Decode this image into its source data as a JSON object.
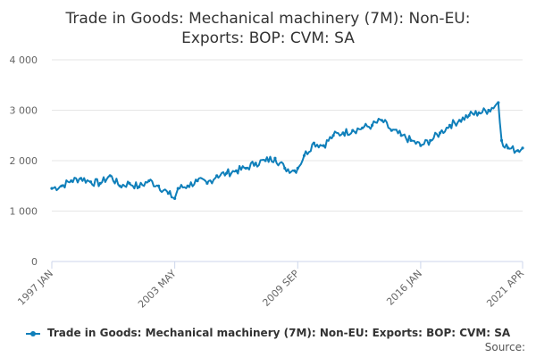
{
  "title": "Trade in Goods: Mechanical machinery (7M): Non-EU:\nExports: BOP: CVM: SA",
  "source_label": "Source:",
  "colors": {
    "series": "#0f7fba",
    "grid": "#e6e6e6",
    "axis": "#ccd6eb"
  },
  "chart_data": {
    "type": "line",
    "title": "Trade in Goods: Mechanical machinery (7M): Non-EU: Exports: BOP: CVM: SA",
    "xlabel": "",
    "ylabel": "",
    "ylim": [
      0,
      4000
    ],
    "y_ticks": [
      "0",
      "1 000",
      "2 000",
      "3 000",
      "4 000"
    ],
    "x_ticks": [
      "1997 JAN",
      "2003 MAY",
      "2009 SEP",
      "2016 JAN",
      "2021 APR"
    ],
    "grid": true,
    "legend_position": "bottom",
    "series": [
      {
        "name": "Trade in Goods: Mechanical machinery (7M): Non-EU: Exports: BOP: CVM: SA",
        "x": [
          "1997-01",
          "1997-07",
          "1998-01",
          "1998-07",
          "1999-01",
          "1999-07",
          "2000-01",
          "2000-07",
          "2001-01",
          "2001-07",
          "2002-01",
          "2002-07",
          "2003-01",
          "2003-05",
          "2003-07",
          "2004-01",
          "2004-07",
          "2005-01",
          "2005-07",
          "2006-01",
          "2006-07",
          "2007-01",
          "2007-07",
          "2008-01",
          "2008-07",
          "2009-01",
          "2009-07",
          "2009-09",
          "2010-01",
          "2010-07",
          "2011-01",
          "2011-07",
          "2012-01",
          "2012-07",
          "2013-01",
          "2013-07",
          "2014-01",
          "2014-07",
          "2015-01",
          "2015-07",
          "2016-01",
          "2016-07",
          "2017-01",
          "2017-07",
          "2018-01",
          "2018-07",
          "2019-01",
          "2019-07",
          "2020-01",
          "2020-03",
          "2020-07",
          "2021-01",
          "2021-04"
        ],
        "values": [
          1450,
          1500,
          1600,
          1650,
          1580,
          1550,
          1700,
          1500,
          1550,
          1480,
          1600,
          1500,
          1350,
          1250,
          1450,
          1500,
          1600,
          1550,
          1700,
          1750,
          1800,
          1850,
          1950,
          2000,
          2050,
          1850,
          1800,
          1850,
          2100,
          2350,
          2300,
          2500,
          2550,
          2600,
          2650,
          2700,
          2800,
          2600,
          2500,
          2400,
          2300,
          2400,
          2550,
          2700,
          2800,
          2900,
          2950,
          3000,
          3150,
          2400,
          2250,
          2200,
          2250
        ]
      }
    ]
  }
}
